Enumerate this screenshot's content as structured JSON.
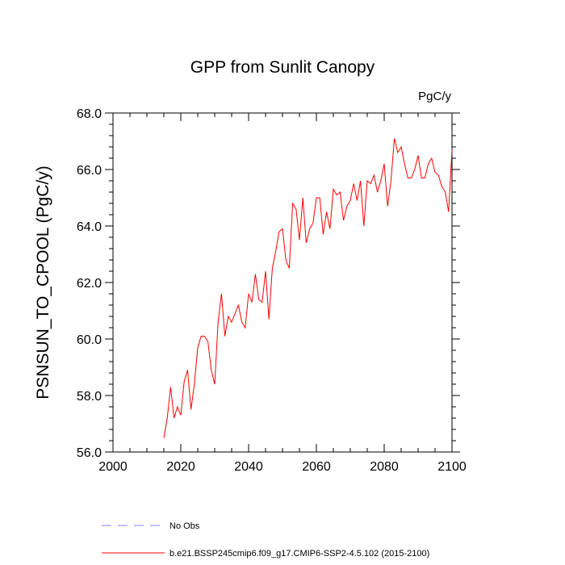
{
  "chart_data": {
    "type": "line",
    "title": "GPP from Sunlit Canopy",
    "units_label": "PgC/y",
    "ylabel": "PSNSUN_TO_CPOOL  (PgC/y)",
    "xlabel": "",
    "xlim": [
      2000,
      2100
    ],
    "ylim": [
      56.0,
      68.0
    ],
    "x_ticks": [
      2000,
      2020,
      2040,
      2060,
      2080,
      2100
    ],
    "x_tick_labels": [
      "2000",
      "2020",
      "2040",
      "2060",
      "2080",
      "2100"
    ],
    "y_ticks": [
      56,
      58,
      60,
      62,
      64,
      66,
      68
    ],
    "y_tick_labels": [
      "56.0",
      "58.0",
      "60.0",
      "62.0",
      "64.0",
      "66.0",
      "68.0"
    ],
    "grid": false,
    "legend_position": "bottom",
    "series": [
      {
        "name": "No Obs",
        "color": "#8080ff",
        "dash": "dashed",
        "x": [],
        "y": []
      },
      {
        "name": "b.e21.BSSP245cmip6.f09_g17.CMIP6-SSP2-4.5.102 (2015-2100)",
        "color": "#ff0000",
        "dash": "solid",
        "x": [
          2015,
          2016,
          2017,
          2018,
          2019,
          2020,
          2021,
          2022,
          2023,
          2024,
          2025,
          2026,
          2027,
          2028,
          2029,
          2030,
          2031,
          2032,
          2033,
          2034,
          2035,
          2036,
          2037,
          2038,
          2039,
          2040,
          2041,
          2042,
          2043,
          2044,
          2045,
          2046,
          2047,
          2048,
          2049,
          2050,
          2051,
          2052,
          2053,
          2054,
          2055,
          2056,
          2057,
          2058,
          2059,
          2060,
          2061,
          2062,
          2063,
          2064,
          2065,
          2066,
          2067,
          2068,
          2069,
          2070,
          2071,
          2072,
          2073,
          2074,
          2075,
          2076,
          2077,
          2078,
          2079,
          2080,
          2081,
          2082,
          2083,
          2084,
          2085,
          2086,
          2087,
          2088,
          2089,
          2090,
          2091,
          2092,
          2093,
          2094,
          2095,
          2096,
          2097,
          2098,
          2099,
          2100
        ],
        "y": [
          56.5,
          57.2,
          58.3,
          57.2,
          57.6,
          57.3,
          58.5,
          58.9,
          57.5,
          58.4,
          59.7,
          60.1,
          60.1,
          59.9,
          58.9,
          58.4,
          60.6,
          61.6,
          60.1,
          60.8,
          60.6,
          60.9,
          61.2,
          60.6,
          60.4,
          61.6,
          61.3,
          62.3,
          61.4,
          61.3,
          62.4,
          60.7,
          62.5,
          63.1,
          63.8,
          63.9,
          62.8,
          62.5,
          64.8,
          64.6,
          63.5,
          65.0,
          63.4,
          63.9,
          64.1,
          65.0,
          65.0,
          63.7,
          64.5,
          63.9,
          65.3,
          65.1,
          65.2,
          64.2,
          64.7,
          64.9,
          65.5,
          64.9,
          65.6,
          64.0,
          65.6,
          65.5,
          65.8,
          65.2,
          65.6,
          66.2,
          64.7,
          65.6,
          67.1,
          66.6,
          66.8,
          66.2,
          65.7,
          65.7,
          66.0,
          66.5,
          65.7,
          65.7,
          66.2,
          66.4,
          65.9,
          65.8,
          65.4,
          65.2,
          64.5,
          66.7
        ]
      }
    ]
  }
}
